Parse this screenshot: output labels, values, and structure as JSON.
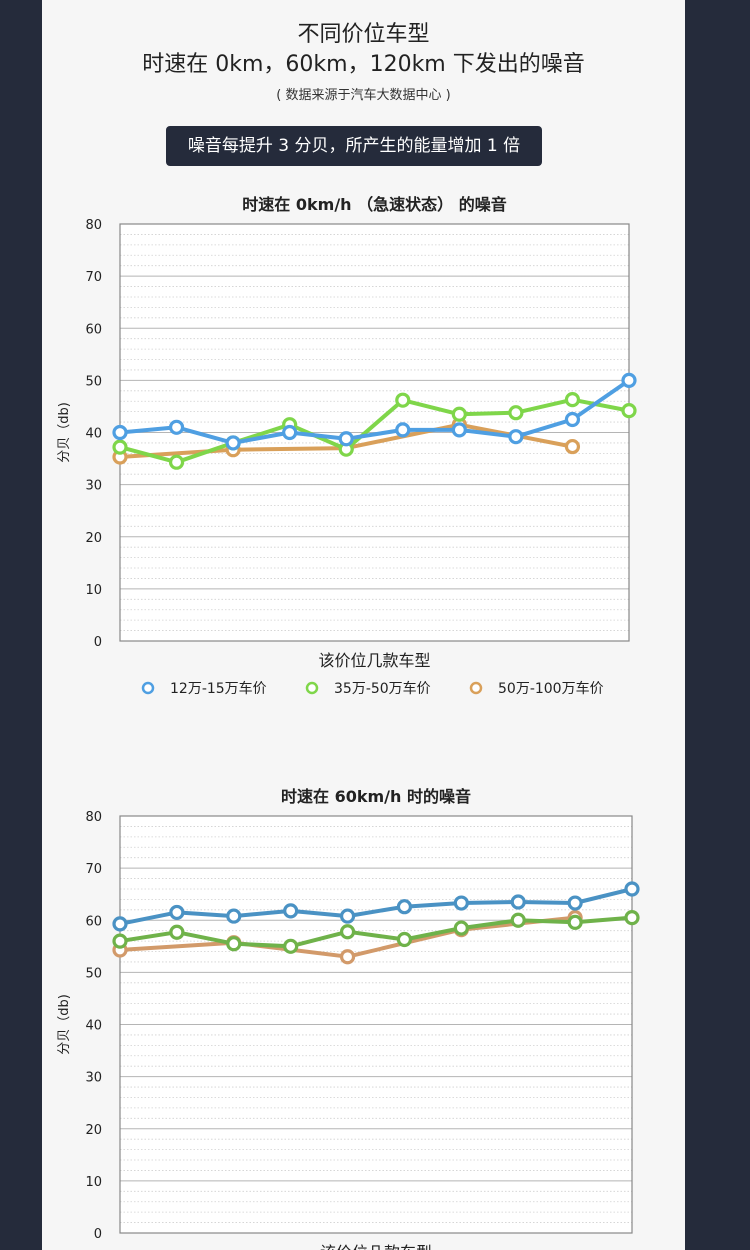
{
  "header": {
    "title_line1": "不同价位车型",
    "title_line2": "时速在 0km，60km，120km 下发出的噪音",
    "source": "( 数据来源于汽车大数据中心 )",
    "note": "噪音每提升 3 分贝，所产生的能量增加 1 倍"
  },
  "colors": {
    "page_bg": "#252b3b",
    "panel_bg": "#f6f6f6",
    "series1": "#4f9fe2",
    "series2": "#7fd64a",
    "series3": "#d9a05a"
  },
  "chart_data": [
    {
      "type": "line",
      "title": "时速在 0km/h （急速状态） 的噪音",
      "xlabel": "该价位几款车型",
      "ylabel": "分贝（db)",
      "ylim": [
        0,
        80
      ],
      "yticks": [
        "0",
        "10",
        "20",
        "30",
        "40",
        "50",
        "60",
        "70",
        "80"
      ],
      "x": [
        1,
        2,
        3,
        4,
        5,
        6,
        7,
        8,
        9,
        10
      ],
      "series": [
        {
          "name": "12万-15万车价",
          "color": "#4f9fe2",
          "values": [
            40,
            41,
            38,
            40,
            38.8,
            40.5,
            40.5,
            39.2,
            42.5,
            50
          ]
        },
        {
          "name": "35万-50万车价",
          "color": "#7fd64a",
          "values": [
            37.2,
            34.3,
            38,
            41.5,
            36.8,
            46.2,
            43.5,
            43.8,
            46.3,
            44.2
          ]
        },
        {
          "name": "50万-100万车价",
          "color": "#d9a05a",
          "values": [
            35.3,
            null,
            36.7,
            null,
            37,
            null,
            41.5,
            null,
            37.3,
            null
          ]
        }
      ]
    },
    {
      "type": "line",
      "title": "时速在 60km/h 时的噪音",
      "xlabel": "该价位几款车型",
      "ylabel": "分贝（db)",
      "ylim": [
        0,
        80
      ],
      "yticks": [
        "0",
        "10",
        "20",
        "30",
        "40",
        "50",
        "60",
        "70",
        "80"
      ],
      "x": [
        1,
        2,
        3,
        4,
        5,
        6,
        7,
        8,
        9,
        10
      ],
      "series": [
        {
          "name": "12万-15万车价",
          "color": "#4a92c4",
          "values": [
            59.3,
            61.5,
            60.8,
            61.8,
            60.8,
            62.6,
            63.3,
            63.5,
            63.3,
            66
          ]
        },
        {
          "name": "35万-50万车价",
          "color": "#6fb24a",
          "values": [
            56,
            57.7,
            55.5,
            55,
            57.8,
            56.3,
            58.5,
            60,
            59.6,
            60.5
          ]
        },
        {
          "name": "50万-100万车价",
          "color": "#d29a6a",
          "values": [
            54.3,
            null,
            55.7,
            null,
            53,
            null,
            58.2,
            null,
            60.5,
            null
          ]
        }
      ]
    }
  ]
}
